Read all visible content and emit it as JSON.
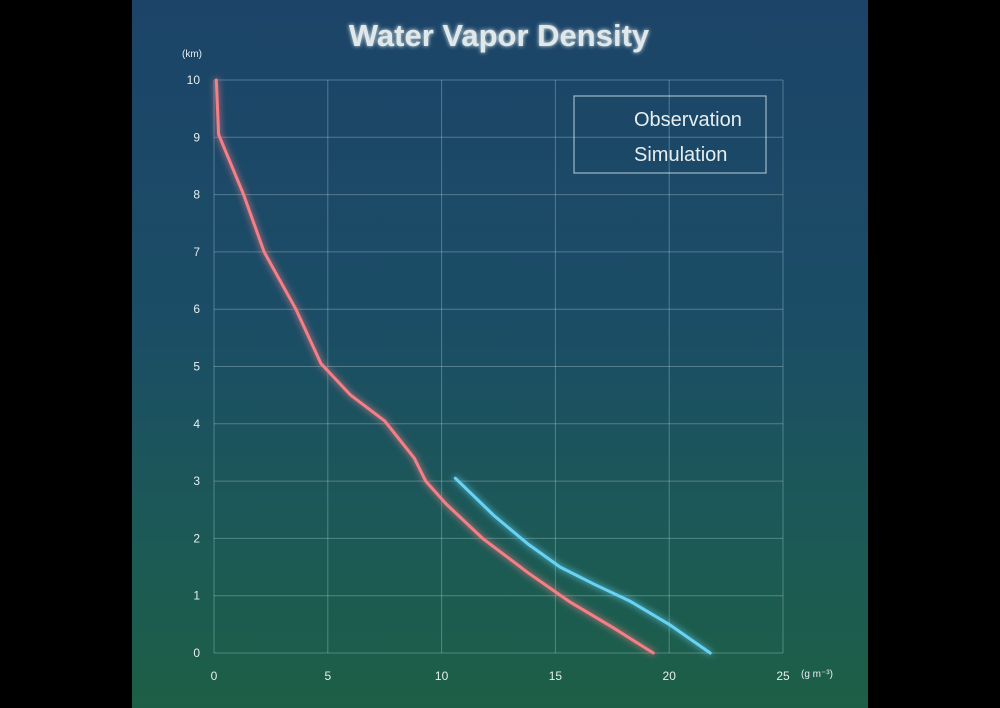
{
  "chart_data": {
    "type": "line",
    "title": "Water Vapor Density",
    "x_unit": "(g m⁻³)",
    "y_unit": "(km)",
    "xlim": [
      0,
      25
    ],
    "ylim": [
      0,
      10
    ],
    "x_ticks": [
      0,
      5,
      10,
      15,
      20,
      25
    ],
    "y_ticks": [
      0,
      1,
      2,
      3,
      4,
      5,
      6,
      7,
      8,
      9,
      10
    ],
    "grid": true,
    "legend_position": "top-right",
    "series": [
      {
        "name": "Observation",
        "color": "#67d3f5",
        "points": [
          [
            21.8,
            0
          ],
          [
            20,
            0.5
          ],
          [
            18.3,
            0.9
          ],
          [
            16.7,
            1.2
          ],
          [
            15.2,
            1.5
          ],
          [
            13.8,
            1.9
          ],
          [
            12.3,
            2.4
          ],
          [
            10.6,
            3.05
          ]
        ]
      },
      {
        "name": "Simulation",
        "color": "#f47f86",
        "points": [
          [
            19.3,
            0
          ],
          [
            17.5,
            0.45
          ],
          [
            15.6,
            0.9
          ],
          [
            13.8,
            1.4
          ],
          [
            11.8,
            2.0
          ],
          [
            10.2,
            2.6
          ],
          [
            9.3,
            3.0
          ],
          [
            8.8,
            3.4
          ],
          [
            7.5,
            4.05
          ],
          [
            6.0,
            4.5
          ],
          [
            4.7,
            5.05
          ],
          [
            3.6,
            6.0
          ],
          [
            2.2,
            7.0
          ],
          [
            1.3,
            8.0
          ],
          [
            0.2,
            9.05
          ],
          [
            0.1,
            10.0
          ]
        ]
      }
    ]
  }
}
